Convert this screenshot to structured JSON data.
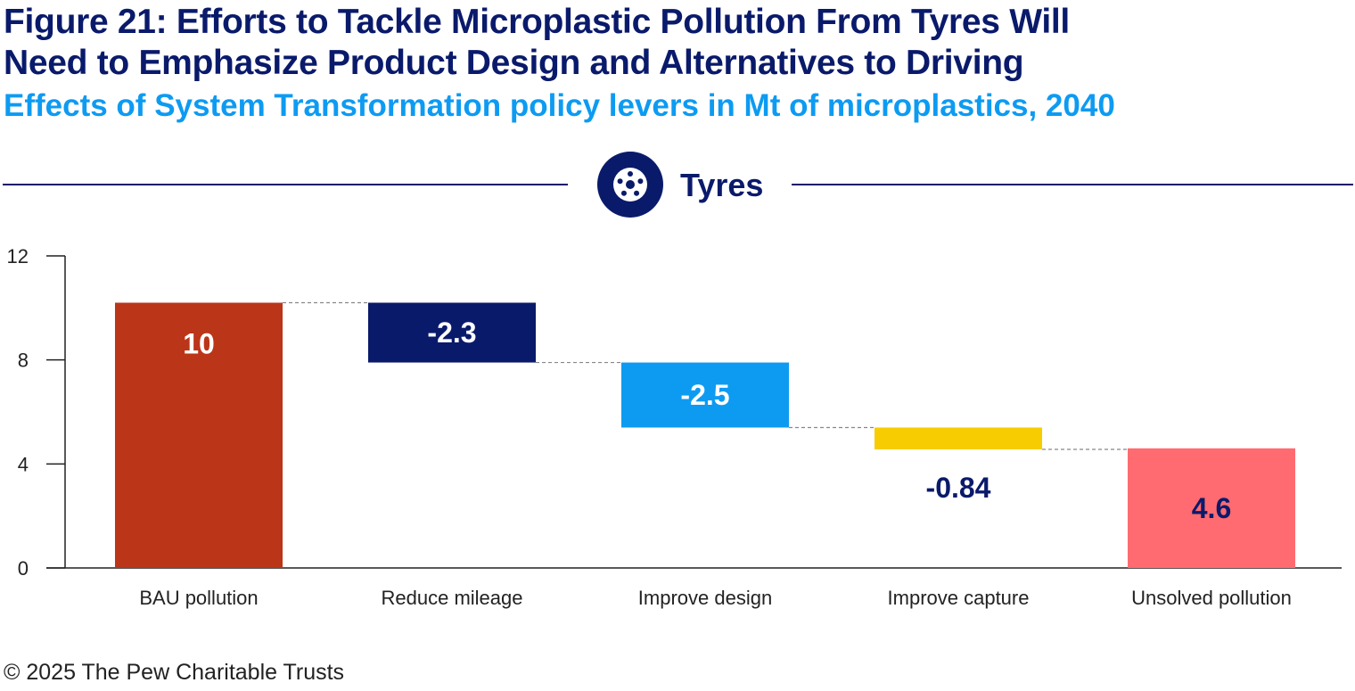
{
  "title_line1": "Figure 21: Efforts to Tackle Microplastic Pollution From Tyres Will",
  "title_line2": "Need to Emphasize Product Design and Alternatives to Driving",
  "subtitle": "Effects of System Transformation policy levers in Mt of microplastics, 2040",
  "section": {
    "label": "Tyres",
    "icon": "tyre-icon",
    "color": "#0a1a6b"
  },
  "footer": "© 2025 The Pew Charitable Trusts",
  "chart_data": {
    "type": "waterfall",
    "categories": [
      "BAU pollution",
      "Reduce mileage",
      "Improve design",
      "Improve capture",
      "Unsolved pollution"
    ],
    "values": [
      10.2,
      -2.3,
      -2.5,
      -0.84,
      4.6
    ],
    "data_labels": [
      "10",
      "-2.3",
      "-2.5",
      "-0.84",
      "4.6"
    ],
    "kinds": [
      "total",
      "delta",
      "delta",
      "delta",
      "total"
    ],
    "colors": [
      "#bb3519",
      "#0a1a6b",
      "#0d9bf2",
      "#f7cc00",
      "#ff6b70"
    ],
    "label_colors": [
      "#ffffff",
      "#ffffff",
      "#ffffff",
      "#0a1a6b",
      "#0a1a6b"
    ],
    "ylim": [
      0,
      12
    ],
    "yticks": [
      0,
      4,
      8,
      12
    ],
    "grid": false,
    "connectors": "dashed"
  }
}
